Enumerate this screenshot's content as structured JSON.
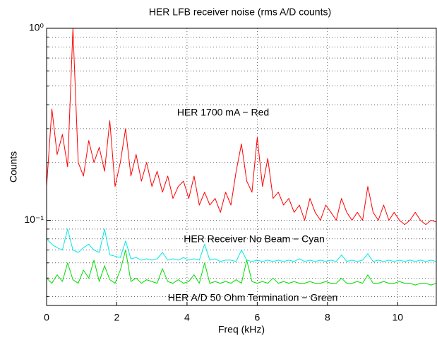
{
  "chart_data": {
    "type": "line",
    "title": "HER LFB receiver noise (rms A/D counts)",
    "xlabel": "Freq (kHz)",
    "ylabel": "Counts",
    "annotations": [
      "HER 1700 mA − Red",
      "HER Receiver No Beam − Cyan",
      "HER A/D 50 Ohm Termination − Green"
    ],
    "yscale": "log",
    "grid": true,
    "xlim": [
      0,
      11.1
    ],
    "ylim": [
      0.036,
      1
    ],
    "xticks": [
      0,
      2,
      4,
      6,
      8,
      10
    ],
    "yticks": [
      {
        "value": 0.1,
        "label": "10⁻¹"
      },
      {
        "value": 1,
        "label": "10⁰"
      }
    ],
    "yminorticks": [
      0.04,
      0.05,
      0.06,
      0.07,
      0.08,
      0.09,
      0.2,
      0.3,
      0.4,
      0.5,
      0.6,
      0.7,
      0.8,
      0.9
    ],
    "x": [
      0,
      0.15,
      0.3,
      0.45,
      0.6,
      0.75,
      0.9,
      1.05,
      1.2,
      1.35,
      1.5,
      1.65,
      1.8,
      1.95,
      2.1,
      2.25,
      2.4,
      2.55,
      2.7,
      2.85,
      3,
      3.15,
      3.3,
      3.45,
      3.6,
      3.75,
      3.9,
      4.05,
      4.2,
      4.35,
      4.5,
      4.65,
      4.8,
      4.95,
      5.1,
      5.25,
      5.4,
      5.55,
      5.7,
      5.85,
      6,
      6.15,
      6.3,
      6.45,
      6.6,
      6.75,
      6.9,
      7.05,
      7.2,
      7.35,
      7.5,
      7.65,
      7.8,
      7.95,
      8.1,
      8.25,
      8.4,
      8.55,
      8.7,
      8.85,
      9,
      9.15,
      9.3,
      9.45,
      9.6,
      9.75,
      9.9,
      10.05,
      10.2,
      10.35,
      10.5,
      10.65,
      10.8,
      10.95,
      11.1
    ],
    "series": [
      {
        "color": "#ff0000",
        "values": [
          0.15,
          0.38,
          0.22,
          0.28,
          0.19,
          1.0,
          0.2,
          0.17,
          0.26,
          0.2,
          0.24,
          0.18,
          0.33,
          0.15,
          0.2,
          0.3,
          0.17,
          0.22,
          0.16,
          0.2,
          0.15,
          0.18,
          0.14,
          0.17,
          0.13,
          0.15,
          0.16,
          0.13,
          0.17,
          0.12,
          0.14,
          0.12,
          0.13,
          0.11,
          0.14,
          0.12,
          0.18,
          0.25,
          0.16,
          0.14,
          0.27,
          0.15,
          0.21,
          0.13,
          0.14,
          0.12,
          0.13,
          0.11,
          0.12,
          0.1,
          0.13,
          0.11,
          0.1,
          0.12,
          0.11,
          0.1,
          0.13,
          0.11,
          0.1,
          0.11,
          0.1,
          0.15,
          0.11,
          0.1,
          0.12,
          0.1,
          0.11,
          0.1,
          0.095,
          0.1,
          0.11,
          0.1,
          0.095,
          0.1,
          0.098
        ]
      },
      {
        "color": "#00e8e8",
        "values": [
          0.08,
          0.075,
          0.072,
          0.07,
          0.09,
          0.07,
          0.068,
          0.072,
          0.075,
          0.07,
          0.068,
          0.09,
          0.066,
          0.065,
          0.064,
          0.078,
          0.063,
          0.064,
          0.062,
          0.063,
          0.062,
          0.063,
          0.068,
          0.062,
          0.063,
          0.062,
          0.064,
          0.062,
          0.063,
          0.062,
          0.075,
          0.062,
          0.063,
          0.061,
          0.062,
          0.062,
          0.061,
          0.07,
          0.062,
          0.061,
          0.062,
          0.061,
          0.062,
          0.061,
          0.062,
          0.061,
          0.062,
          0.061,
          0.063,
          0.061,
          0.062,
          0.061,
          0.062,
          0.061,
          0.062,
          0.061,
          0.066,
          0.061,
          0.062,
          0.061,
          0.062,
          0.067,
          0.061,
          0.062,
          0.061,
          0.062,
          0.061,
          0.062,
          0.061,
          0.062,
          0.061,
          0.062,
          0.061,
          0.062,
          0.061
        ]
      },
      {
        "color": "#00dd00",
        "values": [
          0.05,
          0.047,
          0.052,
          0.048,
          0.06,
          0.049,
          0.047,
          0.055,
          0.05,
          0.062,
          0.048,
          0.058,
          0.049,
          0.047,
          0.055,
          0.07,
          0.048,
          0.05,
          0.047,
          0.049,
          0.048,
          0.047,
          0.056,
          0.048,
          0.047,
          0.049,
          0.047,
          0.048,
          0.052,
          0.047,
          0.06,
          0.047,
          0.048,
          0.047,
          0.048,
          0.047,
          0.049,
          0.047,
          0.062,
          0.048,
          0.047,
          0.048,
          0.047,
          0.05,
          0.047,
          0.048,
          0.047,
          0.048,
          0.047,
          0.047,
          0.048,
          0.047,
          0.047,
          0.048,
          0.047,
          0.047,
          0.05,
          0.047,
          0.047,
          0.048,
          0.047,
          0.052,
          0.047,
          0.047,
          0.048,
          0.047,
          0.047,
          0.048,
          0.047,
          0.047,
          0.046,
          0.047,
          0.047,
          0.046,
          0.047
        ]
      }
    ]
  }
}
